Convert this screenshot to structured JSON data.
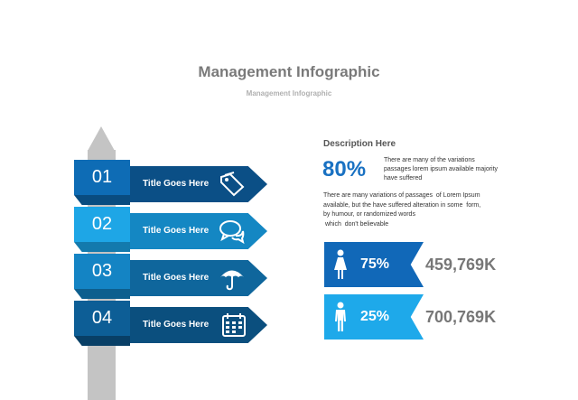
{
  "header": {
    "title": "Management Infographic",
    "subtitle": "Management Infographic"
  },
  "signs": [
    {
      "number": "01",
      "label": "Title Goes Here",
      "icon": "tag-icon",
      "box_color": "#0e6cb5",
      "fold_color": "#094c80",
      "arrow_color": "#0b4f86"
    },
    {
      "number": "02",
      "label": "Title Goes Here",
      "icon": "speech-bubbles-icon",
      "box_color": "#1ea6e6",
      "fold_color": "#137aad",
      "arrow_color": "#1487c3"
    },
    {
      "number": "03",
      "label": "Title Goes Here",
      "icon": "umbrella-icon",
      "box_color": "#1484c4",
      "fold_color": "#0d5f8e",
      "arrow_color": "#0f669c"
    },
    {
      "number": "04",
      "label": "Title Goes Here",
      "icon": "calendar-icon",
      "box_color": "#0d5e96",
      "fold_color": "#083f66",
      "arrow_color": "#0b4f7e"
    }
  ],
  "description": {
    "heading": "Description Here",
    "percent": "80%",
    "percent_text": "There are many of the variations passages lorem ipsum available majority have suffered",
    "paragraph_lines": [
      "There are many variations of passages  of Lorem Ipsum",
      "available, but the have suffered alteration in some  form,",
      "by humour, or randomized words",
      " which  don't believable"
    ]
  },
  "stats": [
    {
      "icon": "female-person-icon",
      "percent": "75%",
      "value": "459,769K",
      "color": "#1168b8"
    },
    {
      "icon": "male-person-icon",
      "percent": "25%",
      "value": "700,769K",
      "color": "#1ea9ea"
    }
  ]
}
